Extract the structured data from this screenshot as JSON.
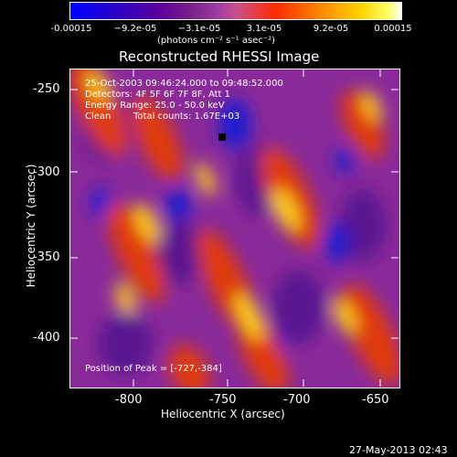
{
  "colorbar": {
    "labels": [
      "-0.00015",
      "−9.2e-05",
      "−3.1e-05",
      "3.1e-05",
      "9.2e-05",
      "0.00015"
    ],
    "units": "(photons cm⁻² s⁻¹ asec⁻²)"
  },
  "plot": {
    "title": "Reconstructed RHESSI Image",
    "info": {
      "time_range": "25-Oct-2003 09:46:24.000 to 09:48:52.000",
      "detectors": "Detectors: 4F 5F 6F 7F 8F, Att 1",
      "energy": "Energy Range: 25.0 - 50.0 keV",
      "clean": "Clean",
      "total_counts": "Total counts: 1.67E+03"
    },
    "peak_label": "Position of Peak = [-727,-384]"
  },
  "axes": {
    "xlabel": "Heliocentric X (arcsec)",
    "ylabel": "Heliocentric Y (arcsec)",
    "xticks": [
      "-800",
      "-750",
      "-700",
      "-650"
    ],
    "yticks": [
      "-250",
      "-300",
      "-350",
      "-400"
    ]
  },
  "footer": {
    "timestamp": "27-May-2013 02:43"
  },
  "colors": {
    "background": "#000000",
    "frame": "#ffffff",
    "text": "#ffffff"
  }
}
